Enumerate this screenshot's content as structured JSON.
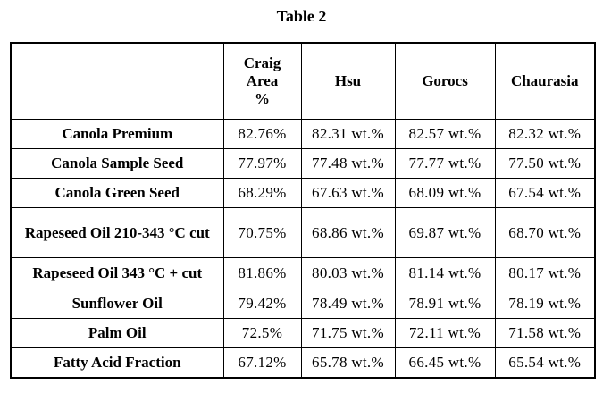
{
  "table": {
    "caption": "Table 2",
    "headers": [
      "",
      "Craig Area %",
      "Hsu",
      "Gorocs",
      "Chaurasia"
    ],
    "rows": [
      {
        "label": "Canola Premium",
        "values": [
          "82.76%",
          "82.31 wt.%",
          "82.57 wt.%",
          "82.32 wt.%"
        ]
      },
      {
        "label": "Canola Sample Seed",
        "values": [
          "77.97%",
          "77.48 wt.%",
          "77.77 wt.%",
          "77.50 wt.%"
        ]
      },
      {
        "label": "Canola Green Seed",
        "values": [
          "68.29%",
          "67.63 wt.%",
          "68.09 wt.%",
          "67.54 wt.%"
        ]
      },
      {
        "label": "Rapeseed Oil 210-343 °C cut",
        "values": [
          "70.75%",
          "68.86 wt.%",
          "69.87 wt.%",
          "68.70 wt.%"
        ]
      },
      {
        "label": "Rapeseed Oil 343 °C + cut",
        "values": [
          "81.86%",
          "80.03 wt.%",
          "81.14 wt.%",
          "80.17 wt.%"
        ]
      },
      {
        "label": "Sunflower Oil",
        "values": [
          "79.42%",
          "78.49 wt.%",
          "78.91 wt.%",
          "78.19 wt.%"
        ]
      },
      {
        "label": "Palm Oil",
        "values": [
          "72.5%",
          "71.75 wt.%",
          "72.11 wt.%",
          "71.58 wt.%"
        ]
      },
      {
        "label": "Fatty Acid Fraction",
        "values": [
          "67.12%",
          "65.78 wt.%",
          "66.45 wt.%",
          "65.54 wt.%"
        ]
      }
    ]
  }
}
